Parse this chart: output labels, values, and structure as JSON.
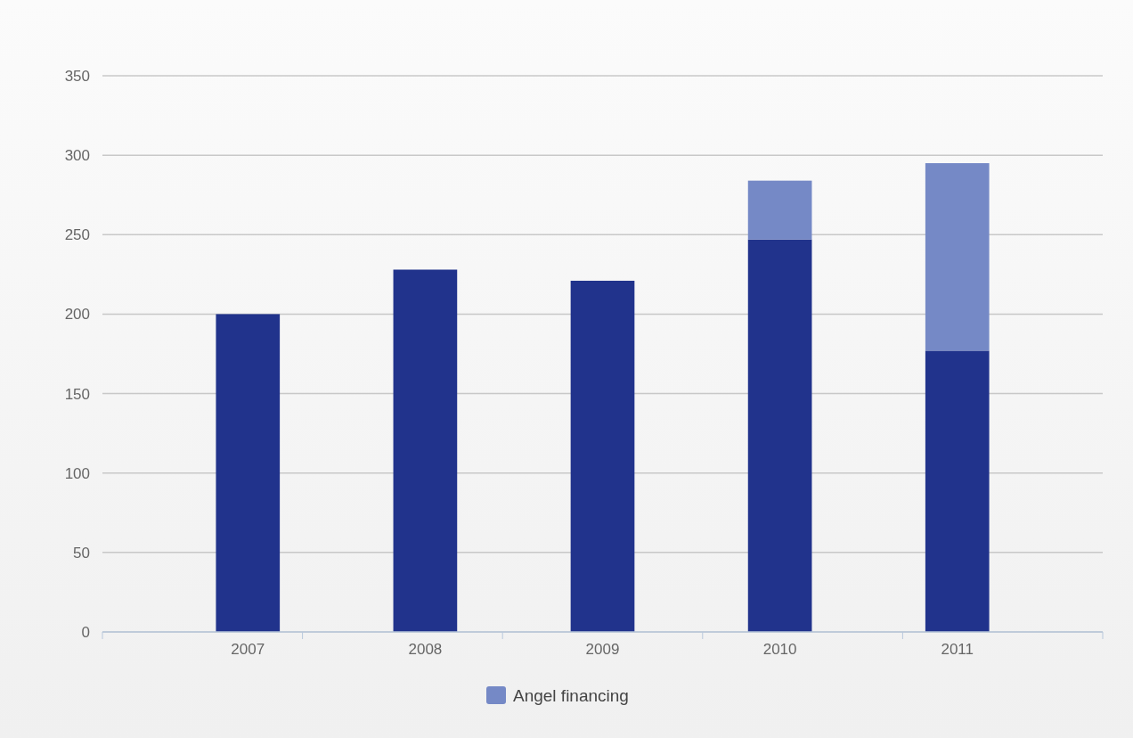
{
  "chart_data": {
    "type": "bar",
    "stacked": true,
    "categories": [
      "2007",
      "2008",
      "2009",
      "2010",
      "2011"
    ],
    "series": [
      {
        "color": "#21338c",
        "values": [
          200,
          228,
          221,
          247,
          177
        ]
      },
      {
        "name": "Angel financing",
        "color": "#7589c6",
        "values": [
          null,
          null,
          null,
          37,
          118
        ]
      }
    ],
    "ylim": [
      0,
      350
    ],
    "yticks": [
      0,
      50,
      100,
      150,
      200,
      250,
      300,
      350
    ],
    "grid": "y",
    "legend": "bottom"
  }
}
